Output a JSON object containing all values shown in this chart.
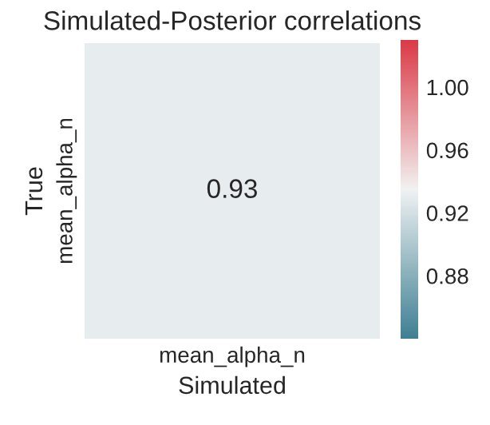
{
  "chart_data": {
    "type": "heatmap",
    "title": "Simulated-Posterior correlations",
    "xlabel": "Simulated",
    "ylabel": "True",
    "categories": [
      "mean_alpha_n"
    ],
    "y_categories": [
      "mean_alpha_n"
    ],
    "cells": [
      [
        0.93
      ]
    ],
    "data_labels": true,
    "clim": [
      0.84,
      1.03
    ],
    "cticks": [
      0.88,
      0.92,
      0.96,
      {
        "value": 1,
        "label": "1.00"
      }
    ]
  }
}
